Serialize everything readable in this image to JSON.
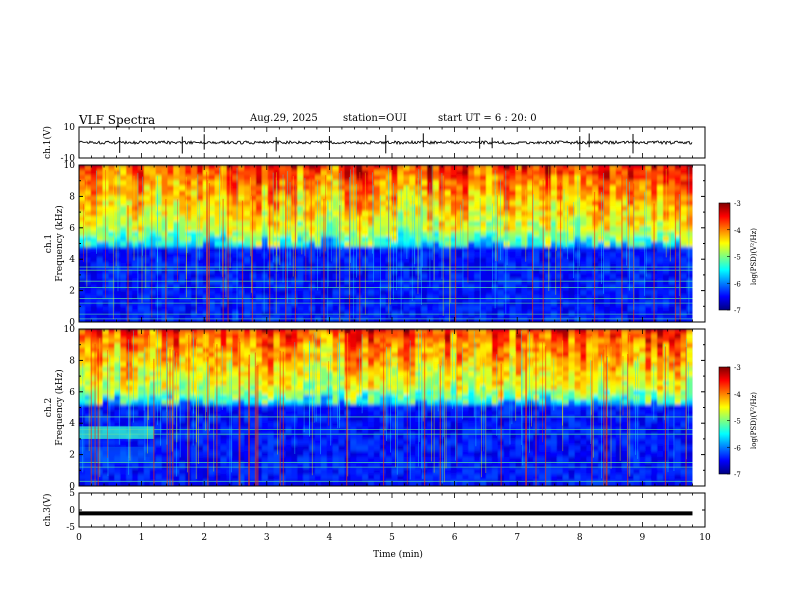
{
  "header": {
    "title": "VLF Spectra",
    "date": "Aug.29, 2025",
    "station": "station=OUI",
    "start_ut": "start  UT =  6 : 20: 0"
  },
  "colors": {
    "scale": [
      "#00007f",
      "#0000ff",
      "#007fff",
      "#00ffff",
      "#7fff7f",
      "#ffff00",
      "#ff7f00",
      "#ff0000",
      "#7f0000"
    ]
  },
  "chart_data": [
    {
      "type": "line",
      "name": "ch1-waveform",
      "ylabel": "ch.1(V)",
      "ylim": [
        -10,
        10
      ],
      "yticks": [
        "10",
        "-10"
      ],
      "baseline_level": 0,
      "approx_amplitude": 1,
      "spike_times_min": [
        0.65,
        1.65,
        2.0,
        3.15,
        4.0,
        4.9,
        5.5,
        6.4,
        6.6,
        8.0,
        8.15,
        8.85
      ]
    },
    {
      "type": "heatmap",
      "name": "ch1-spectrogram",
      "title": "ch.1",
      "ylabel": "Frequency (kHz)",
      "ylim": [
        0,
        10
      ],
      "yticks": [
        "0",
        "2",
        "4",
        "6",
        "8",
        "10"
      ],
      "colorbar": {
        "label": "log(PSD)(V²/Hz)",
        "range": [
          -7,
          -3
        ],
        "ticks": [
          "-3",
          "-4",
          "-5",
          "-6",
          "-7"
        ]
      },
      "cutoff_khz": 4.8,
      "channel_lines_khz": [
        0.2,
        0.5,
        1.2,
        1.5,
        2.2,
        2.6,
        3.3,
        3.5
      ]
    },
    {
      "type": "heatmap",
      "name": "ch2-spectrogram",
      "title": "ch.2",
      "ylabel": "Frequency (kHz)",
      "ylim": [
        0,
        10
      ],
      "yticks": [
        "0",
        "2",
        "4",
        "6",
        "8",
        "10"
      ],
      "colorbar": {
        "label": "log(PSD)(V²/Hz)",
        "range": [
          -7,
          -3
        ],
        "ticks": [
          "-3",
          "-4",
          "-5",
          "-6",
          "-7"
        ]
      },
      "cutoff_khz": 5.2,
      "channel_lines_khz": [
        0.3,
        1.2,
        1.5,
        3.3,
        3.6,
        4.4
      ],
      "interference_band": {
        "t_end_min": 1.2,
        "f_low_khz": 3.0,
        "f_high_khz": 3.8
      }
    },
    {
      "type": "line",
      "name": "ch3-waveform",
      "ylabel": "ch.3(V)",
      "ylim": [
        -5,
        5
      ],
      "yticks": [
        "5",
        "0",
        "-5"
      ],
      "level": -1
    }
  ],
  "xaxis": {
    "label": "Time  (min)",
    "ticks": [
      "0",
      "1",
      "2",
      "3",
      "4",
      "5",
      "6",
      "7",
      "8",
      "9",
      "10"
    ],
    "range": [
      0,
      10
    ],
    "data_end_min": 9.8
  }
}
